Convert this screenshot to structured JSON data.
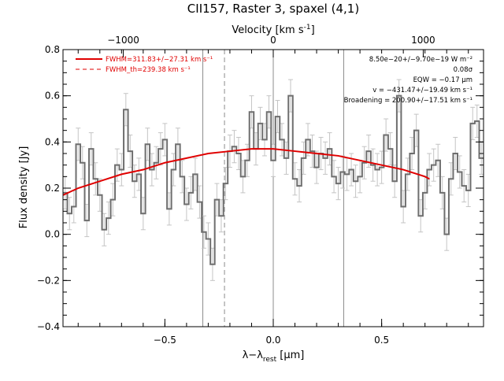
{
  "chart_data": {
    "type": "line",
    "title": "CII157, Raster 3, spaxel (4,1)",
    "xlabel": "λ−λ",
    "xlabel_sub": "rest",
    "xlabel_unit": " [μm]",
    "ylabel": "Flux density [Jy]",
    "top_xlabel": "Velocity [km s",
    "top_xlabel_sup": "-1",
    "top_xlabel_close": "]",
    "xlim": [
      -0.97,
      0.97
    ],
    "ylim": [
      -0.4,
      0.8
    ],
    "top_xlim": [
      -1402,
      1402
    ],
    "x_ticks": [
      {
        "value": -0.5,
        "label": "−0.5"
      },
      {
        "value": 0.0,
        "label": "0.0"
      },
      {
        "value": 0.5,
        "label": "0.5"
      }
    ],
    "y_ticks": [
      {
        "value": -0.4,
        "label": "−0.4"
      },
      {
        "value": -0.2,
        "label": "−0.2"
      },
      {
        "value": 0.0,
        "label": "0.0"
      },
      {
        "value": 0.2,
        "label": "0.2"
      },
      {
        "value": 0.4,
        "label": "0.4"
      },
      {
        "value": 0.6,
        "label": "0.6"
      },
      {
        "value": 0.8,
        "label": "0.8"
      }
    ],
    "top_ticks": [
      {
        "value": -1000,
        "label": "−1000"
      },
      {
        "value": 0,
        "label": "0"
      },
      {
        "value": 1000,
        "label": "1000"
      }
    ],
    "reference_lines": [
      {
        "x": -0.325,
        "style": "solid"
      },
      {
        "x": -0.225,
        "style": "dashed"
      },
      {
        "x": 0.0,
        "style": "solid"
      },
      {
        "x": 0.325,
        "style": "solid"
      }
    ],
    "series": [
      {
        "name": "spectrum",
        "style": "steps",
        "color": "#6e6e6e",
        "x": [
          -0.96,
          -0.94,
          -0.92,
          -0.9,
          -0.88,
          -0.86,
          -0.84,
          -0.82,
          -0.8,
          -0.78,
          -0.76,
          -0.74,
          -0.72,
          -0.7,
          -0.68,
          -0.66,
          -0.64,
          -0.62,
          -0.6,
          -0.58,
          -0.56,
          -0.54,
          -0.52,
          -0.5,
          -0.48,
          -0.46,
          -0.44,
          -0.42,
          -0.4,
          -0.38,
          -0.36,
          -0.34,
          -0.32,
          -0.3,
          -0.28,
          -0.26,
          -0.24,
          -0.22,
          -0.2,
          -0.18,
          -0.16,
          -0.14,
          -0.12,
          -0.1,
          -0.08,
          -0.06,
          -0.04,
          -0.02,
          0.0,
          0.02,
          0.04,
          0.06,
          0.08,
          0.1,
          0.12,
          0.14,
          0.16,
          0.18,
          0.2,
          0.22,
          0.24,
          0.26,
          0.28,
          0.3,
          0.32,
          0.34,
          0.36,
          0.38,
          0.4,
          0.42,
          0.44,
          0.46,
          0.48,
          0.5,
          0.52,
          0.54,
          0.56,
          0.58,
          0.6,
          0.62,
          0.64,
          0.66,
          0.68,
          0.7,
          0.72,
          0.74,
          0.76,
          0.78,
          0.8,
          0.82,
          0.84,
          0.86,
          0.88,
          0.9,
          0.92,
          0.94,
          0.96
        ],
        "y": [
          0.18,
          0.09,
          0.12,
          0.39,
          0.31,
          0.06,
          0.37,
          0.24,
          0.17,
          0.02,
          0.07,
          0.15,
          0.3,
          0.28,
          0.54,
          0.36,
          0.23,
          0.26,
          0.09,
          0.39,
          0.28,
          0.31,
          0.37,
          0.41,
          0.11,
          0.28,
          0.39,
          0.25,
          0.13,
          0.18,
          0.26,
          0.14,
          0.01,
          -0.02,
          -0.13,
          0.15,
          0.08,
          0.22,
          0.36,
          0.38,
          0.35,
          0.25,
          0.32,
          0.53,
          0.37,
          0.48,
          0.41,
          0.53,
          0.32,
          0.51,
          0.41,
          0.33,
          0.6,
          0.24,
          0.21,
          0.33,
          0.41,
          0.36,
          0.29,
          0.35,
          0.33,
          0.37,
          0.25,
          0.22,
          0.27,
          0.26,
          0.28,
          0.23,
          0.25,
          0.31,
          0.36,
          0.3,
          0.28,
          0.29,
          0.43,
          0.37,
          0.23,
          0.6,
          0.12,
          0.26,
          0.35,
          0.45,
          0.08,
          0.18,
          0.28,
          0.3,
          0.32,
          0.18,
          0.0,
          0.24,
          0.35,
          0.27,
          0.21,
          0.19,
          0.48,
          0.49,
          0.33
        ],
        "yerr": 0.07
      },
      {
        "name": "FWHM=311.83+/−27.31 km s⁻¹",
        "style": "solid",
        "color": "#e00000",
        "x": [
          -0.97,
          -0.9,
          -0.8,
          -0.7,
          -0.6,
          -0.5,
          -0.4,
          -0.3,
          -0.2,
          -0.1,
          0.0,
          0.1,
          0.2,
          0.3,
          0.4,
          0.5,
          0.6,
          0.7,
          0.72
        ],
        "y": [
          0.17,
          0.2,
          0.23,
          0.26,
          0.28,
          0.31,
          0.33,
          0.35,
          0.36,
          0.37,
          0.37,
          0.36,
          0.35,
          0.34,
          0.32,
          0.3,
          0.28,
          0.25,
          0.24
        ]
      },
      {
        "name": "FWHM_th=239.38 km s⁻¹",
        "style": "dashed",
        "color": "#e00000",
        "x": [],
        "y": []
      }
    ],
    "legend": {
      "placement": "top-left",
      "entries": [
        "FWHM=311.83+/−27.31 km s⁻¹",
        "FWHM_th=239.38 km s⁻¹"
      ]
    },
    "annotations": [
      "8.50e−20+/−9.70e−19 W m⁻²",
      "0.08σ",
      "EQW = −0.17 μm",
      "v = −431.47+/−19.49 km s⁻¹",
      "Broadening = 200.90+/−17.51 km s⁻¹"
    ],
    "annotation_placement": "top-right",
    "grid": false
  }
}
